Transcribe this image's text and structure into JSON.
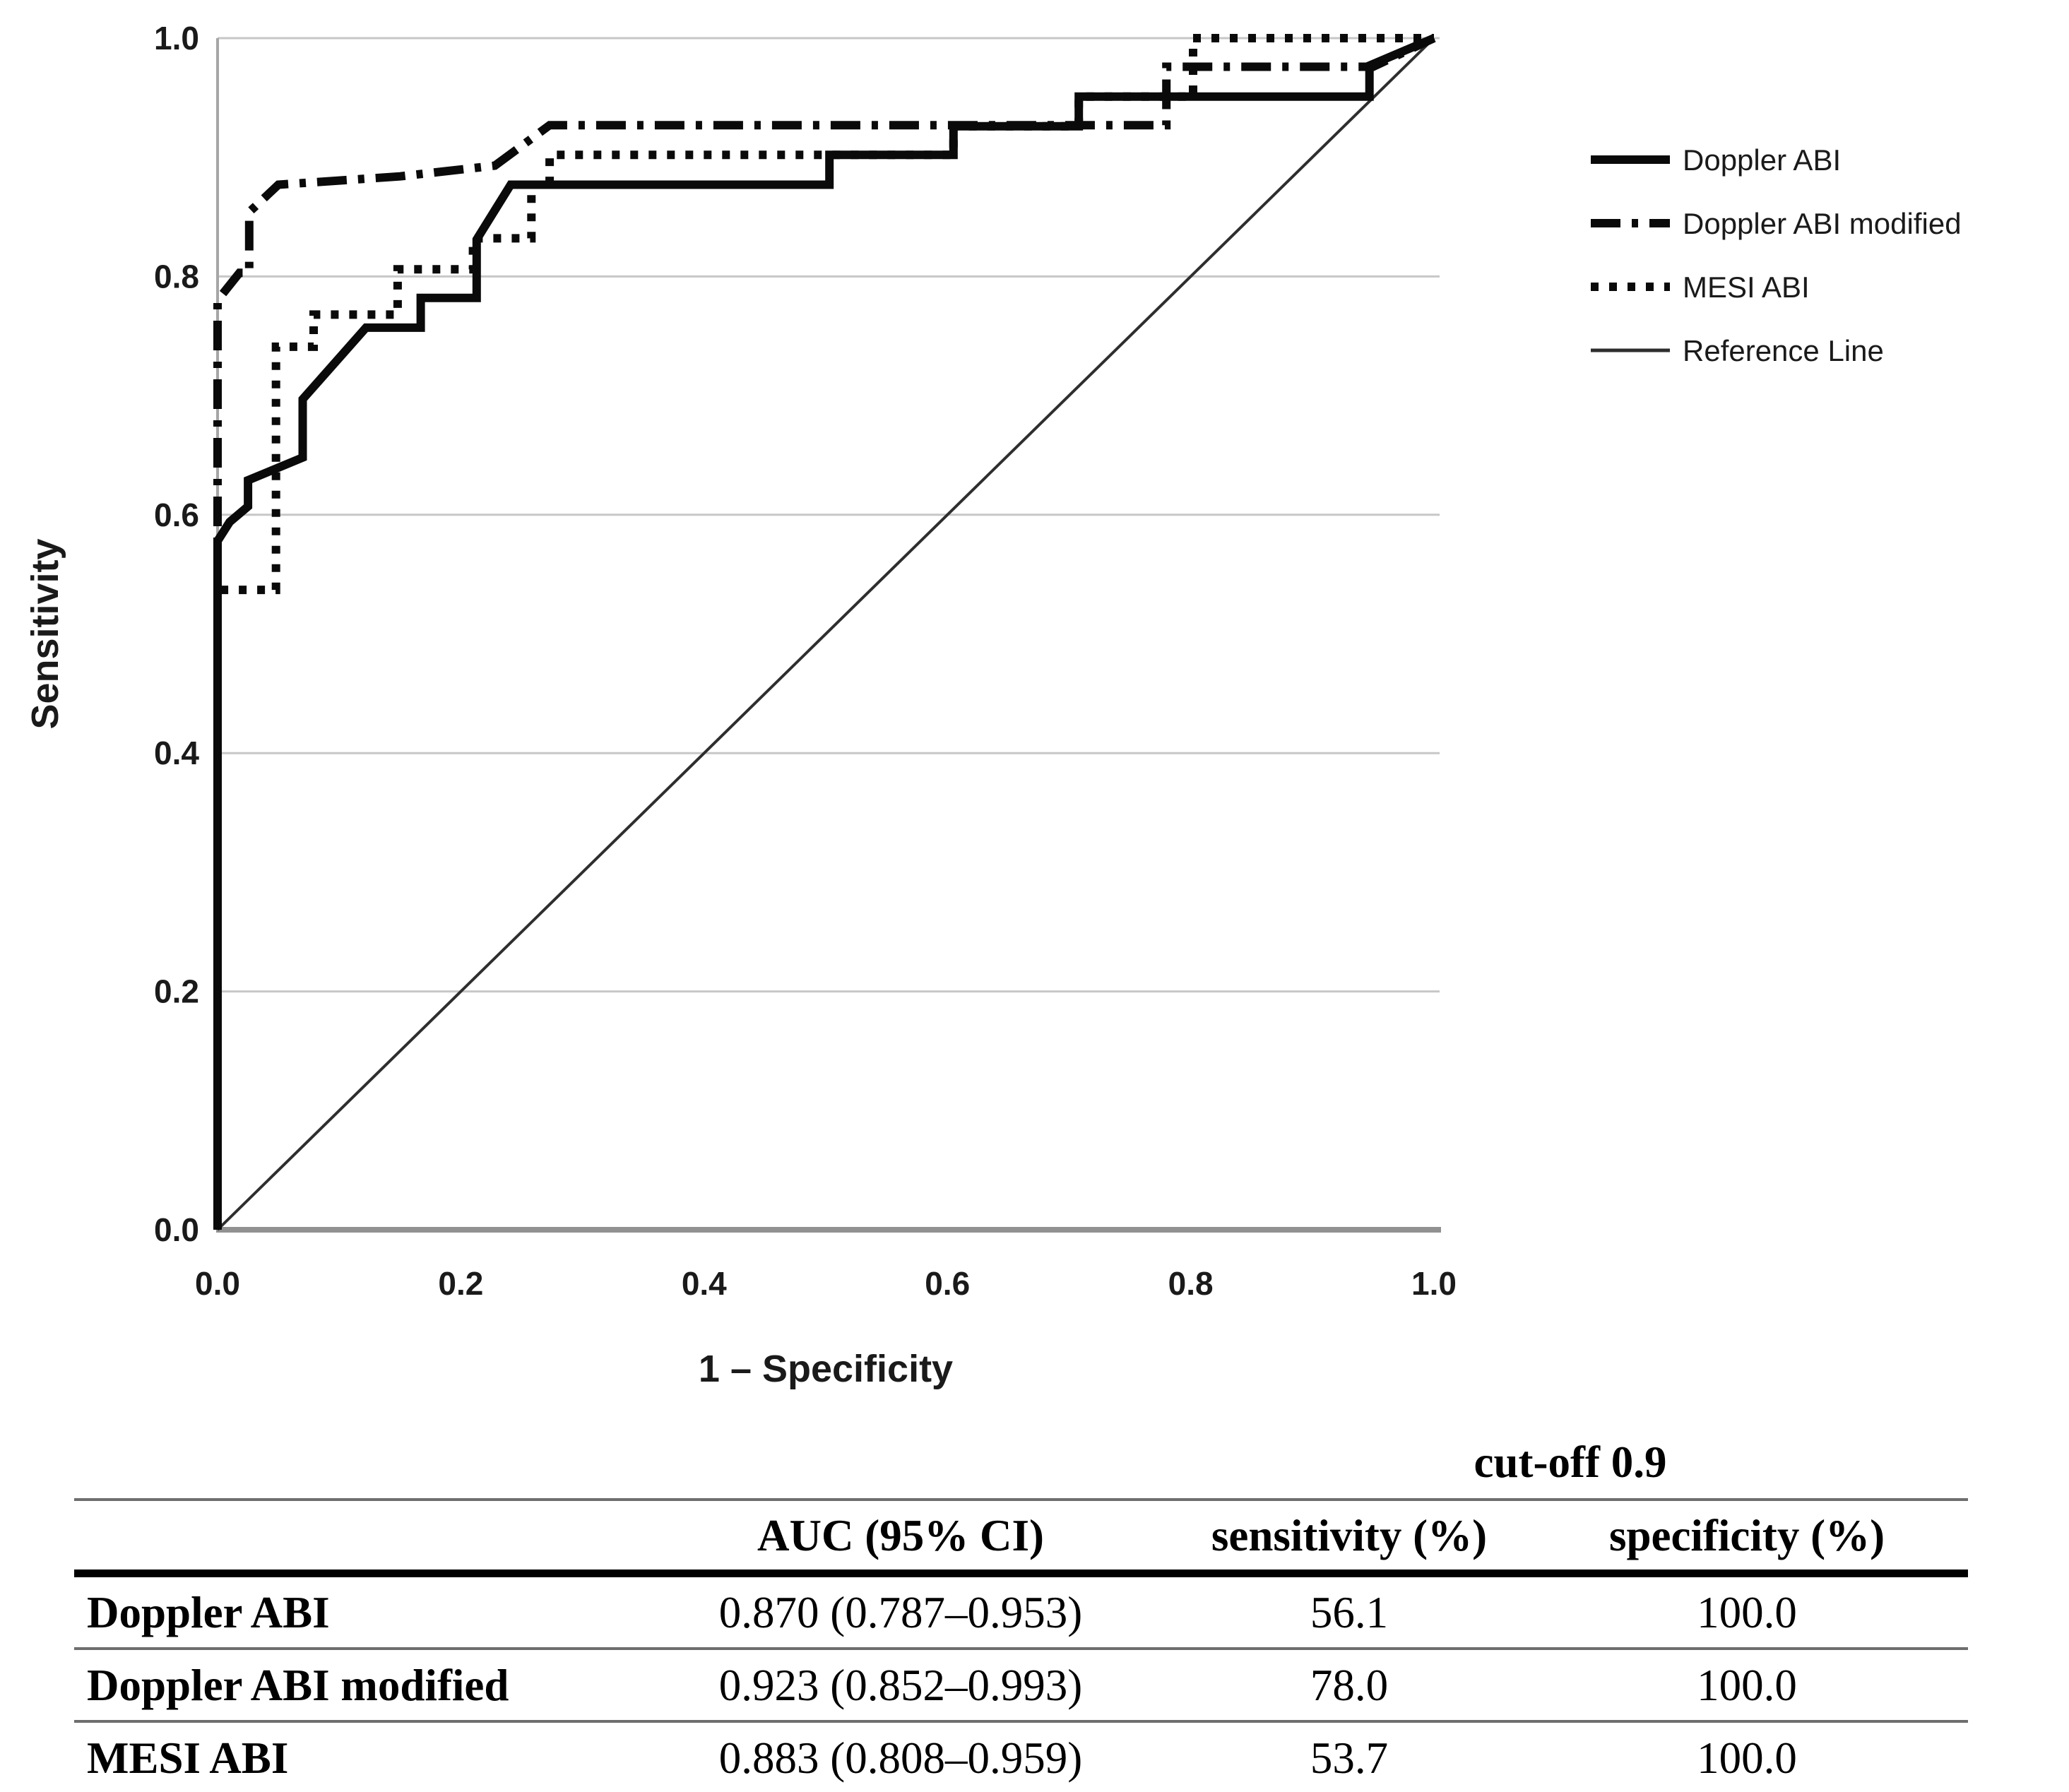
{
  "chart_data": {
    "type": "line",
    "title": "",
    "xlabel": "1 – Specificity",
    "ylabel": "Sensitivity",
    "xlim": [
      0,
      1
    ],
    "ylim": [
      0,
      1
    ],
    "xticks": [
      "0.0",
      "0.2",
      "0.4",
      "0.6",
      "0.8",
      "1.0"
    ],
    "yticks": [
      "0.0",
      "0.2",
      "0.4",
      "0.6",
      "0.8",
      "1.0"
    ],
    "grid": "horizontal",
    "legend_position": "top-right",
    "series": [
      {
        "name": "Doppler ABI",
        "style": "solid",
        "points": [
          [
            0,
            0
          ],
          [
            0,
            0.578
          ],
          [
            0.01,
            0.594
          ],
          [
            0.025,
            0.607
          ],
          [
            0.025,
            0.629
          ],
          [
            0.07,
            0.648
          ],
          [
            0.07,
            0.697
          ],
          [
            0.122,
            0.757
          ],
          [
            0.167,
            0.757
          ],
          [
            0.167,
            0.782
          ],
          [
            0.213,
            0.782
          ],
          [
            0.213,
            0.831
          ],
          [
            0.241,
            0.877
          ],
          [
            0.503,
            0.877
          ],
          [
            0.503,
            0.902
          ],
          [
            0.605,
            0.902
          ],
          [
            0.605,
            0.926
          ],
          [
            0.708,
            0.926
          ],
          [
            0.708,
            0.951
          ],
          [
            0.947,
            0.951
          ],
          [
            0.947,
            0.977
          ],
          [
            1,
            1
          ]
        ]
      },
      {
        "name": "Doppler ABI modified",
        "style": "dashdot",
        "points": [
          [
            0,
            0
          ],
          [
            0,
            0.78
          ],
          [
            0.018,
            0.803
          ],
          [
            0.026,
            0.803
          ],
          [
            0.026,
            0.854
          ],
          [
            0.05,
            0.877
          ],
          [
            0.15,
            0.884
          ],
          [
            0.228,
            0.893
          ],
          [
            0.273,
            0.927
          ],
          [
            0.78,
            0.927
          ],
          [
            0.78,
            0.976
          ],
          [
            0.95,
            0.976
          ],
          [
            1,
            1
          ]
        ]
      },
      {
        "name": "MESI ABI",
        "style": "dotted",
        "points": [
          [
            0,
            0
          ],
          [
            0,
            0.537
          ],
          [
            0.048,
            0.537
          ],
          [
            0.048,
            0.741
          ],
          [
            0.079,
            0.741
          ],
          [
            0.079,
            0.768
          ],
          [
            0.148,
            0.768
          ],
          [
            0.148,
            0.806
          ],
          [
            0.21,
            0.806
          ],
          [
            0.21,
            0.832
          ],
          [
            0.258,
            0.832
          ],
          [
            0.258,
            0.877
          ],
          [
            0.273,
            0.877
          ],
          [
            0.273,
            0.902
          ],
          [
            0.605,
            0.902
          ],
          [
            0.605,
            0.926
          ],
          [
            0.708,
            0.926
          ],
          [
            0.708,
            0.951
          ],
          [
            0.802,
            0.951
          ],
          [
            0.802,
            1
          ],
          [
            1,
            1
          ]
        ]
      },
      {
        "name": "Reference Line",
        "style": "reference",
        "points": [
          [
            0,
            0
          ],
          [
            1,
            1
          ]
        ]
      }
    ]
  },
  "table": {
    "cutoff_header": "cut-off 0.9",
    "columns": [
      "",
      "AUC (95% CI)",
      "sensitivity (%)",
      "specificity (%)"
    ],
    "rows": [
      {
        "label": "Doppler ABI",
        "auc": "0.870 (0.787–0.953)",
        "sensitivity": "56.1",
        "specificity": "100.0"
      },
      {
        "label": "Doppler ABI modified",
        "auc": "0.923 (0.852–0.993)",
        "sensitivity": "78.0",
        "specificity": "100.0"
      },
      {
        "label": "MESI ABI",
        "auc": "0.883 (0.808–0.959)",
        "sensitivity": "53.7",
        "specificity": "100.0"
      }
    ]
  },
  "colors": {
    "curve": "#0a0a0a",
    "reference_line": "#2e2e2e",
    "gridline": "#c7c7c7",
    "axis_line": "#919191",
    "tick_text": "#1a1a1a",
    "background": "#ffffff"
  }
}
